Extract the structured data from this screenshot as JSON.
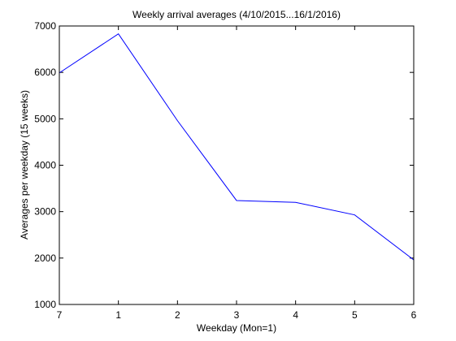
{
  "chart_data": {
    "type": "line",
    "title": "Weekly arrival averages (4/10/2015...16/1/2016)",
    "xlabel": "Weekday (Mon=1)",
    "ylabel": "Averages per weekday (15 weeks)",
    "categories": [
      "7",
      "1",
      "2",
      "3",
      "4",
      "5",
      "6"
    ],
    "series": [
      {
        "values": [
          5990,
          6830,
          4960,
          3240,
          3200,
          2930,
          1960
        ],
        "color": "#0000ff"
      }
    ],
    "ylim": [
      1000,
      7000
    ],
    "yticks": [
      "1000",
      "2000",
      "3000",
      "4000",
      "5000",
      "6000",
      "7000"
    ],
    "grid": false,
    "legend": "none"
  }
}
